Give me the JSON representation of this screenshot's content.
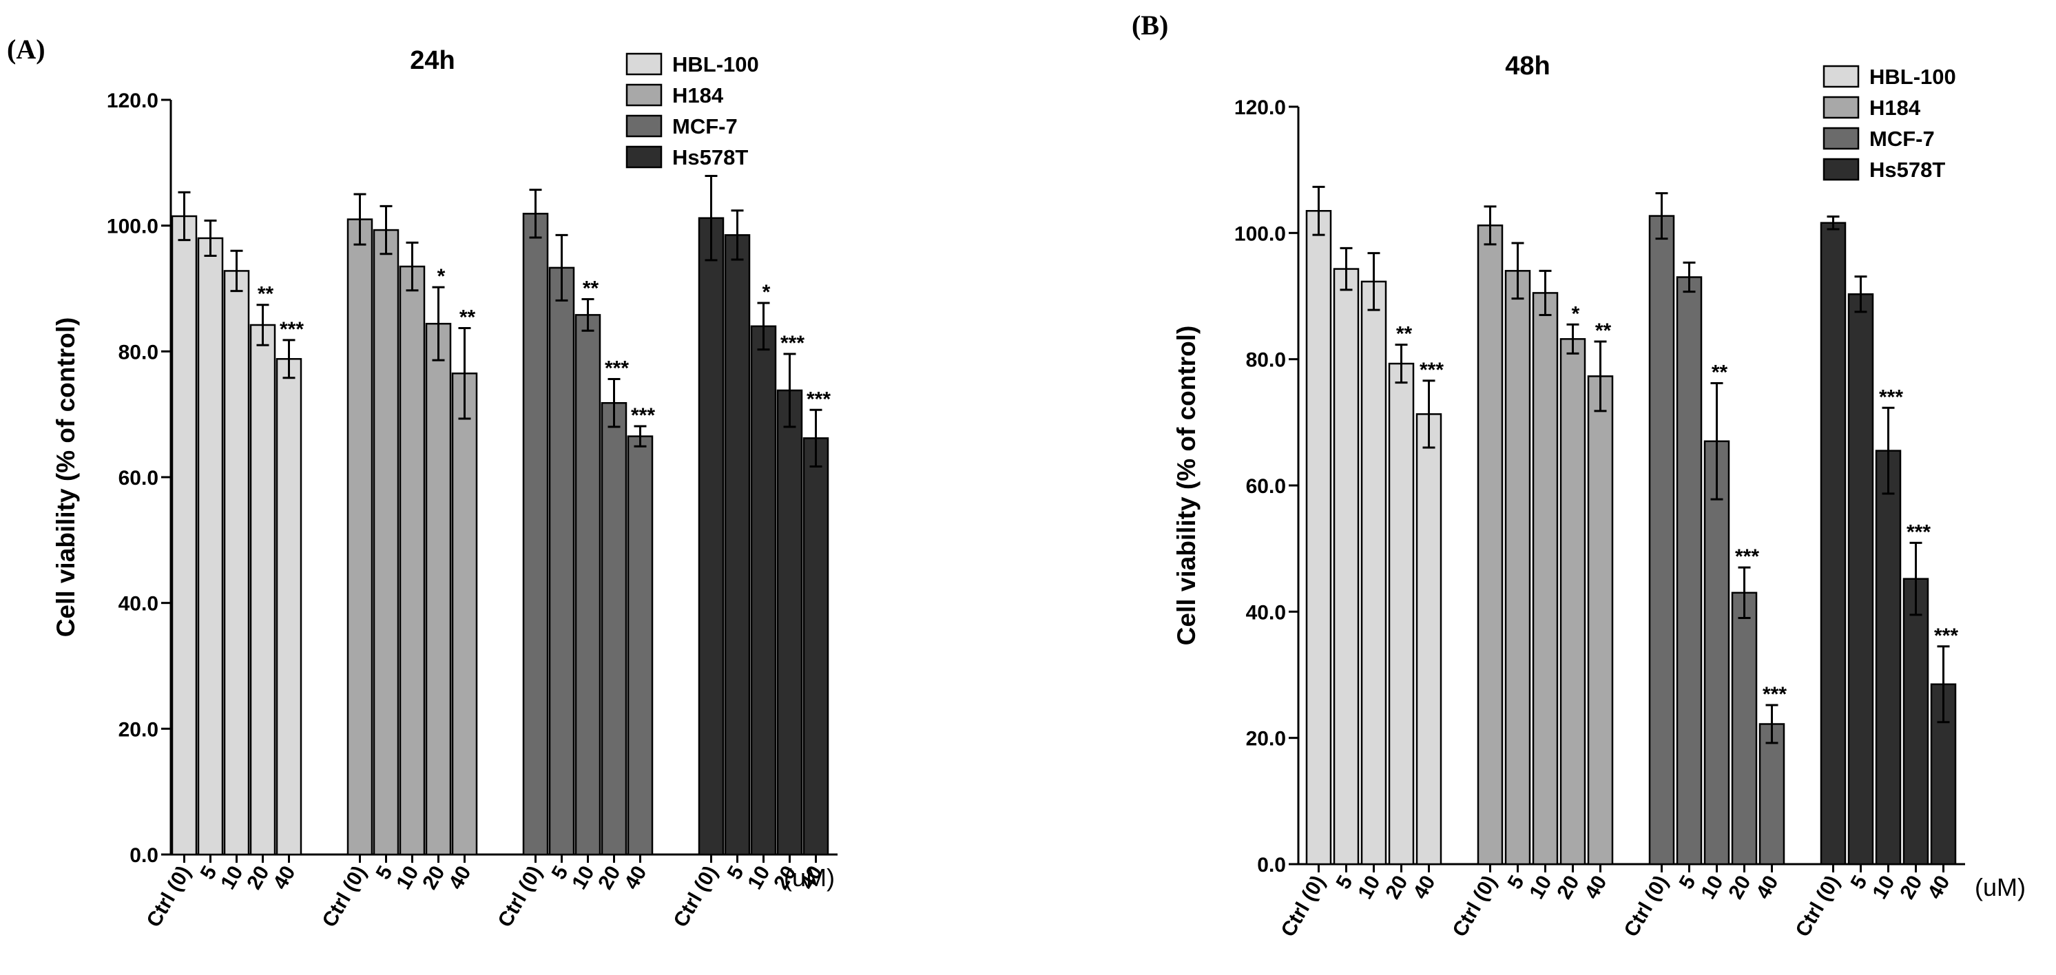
{
  "chart_data": [
    {
      "panel": "(A)",
      "type": "bar",
      "title": "24h",
      "ylabel": "Cell viability (% of control)",
      "xlabel": "",
      "unit": "(uM)",
      "ylim": [
        0,
        120
      ],
      "yticks": [
        "0.0",
        "20.0",
        "40.0",
        "60.0",
        "80.0",
        "100.0",
        "120.0"
      ],
      "categories": [
        "Ctrl (0)",
        "5",
        "10",
        "20",
        "40"
      ],
      "legend_position": "top-right",
      "series": [
        {
          "name": "HBL-100",
          "color": "#d9d9d9",
          "values": [
            101.5,
            98.0,
            92.8,
            84.2,
            78.8
          ],
          "errors": [
            3.8,
            2.8,
            3.2,
            3.2,
            3.0
          ],
          "sig": [
            "",
            "",
            "",
            "**",
            "***"
          ]
        },
        {
          "name": "H184",
          "color": "#a8a8a8",
          "values": [
            101.0,
            99.3,
            93.5,
            84.4,
            76.5
          ],
          "errors": [
            4.0,
            3.8,
            3.8,
            5.8,
            7.2
          ],
          "sig": [
            "",
            "",
            "",
            "*",
            "**"
          ]
        },
        {
          "name": "MCF-7",
          "color": "#6b6b6b",
          "values": [
            101.9,
            93.3,
            85.8,
            71.8,
            66.5
          ],
          "errors": [
            3.8,
            5.2,
            2.5,
            3.8,
            1.6
          ],
          "sig": [
            "",
            "",
            "**",
            "***",
            "***"
          ]
        },
        {
          "name": "Hs578T",
          "color": "#2e2e2e",
          "values": [
            101.2,
            98.5,
            84.0,
            73.8,
            66.2
          ],
          "errors": [
            6.7,
            3.9,
            3.7,
            5.8,
            4.5
          ],
          "sig": [
            "",
            "",
            "*",
            "***",
            "***"
          ]
        }
      ]
    },
    {
      "panel": "(B)",
      "type": "bar",
      "title": "48h",
      "ylabel": "Cell viability (% of control)",
      "xlabel": "",
      "unit": "(uM)",
      "ylim": [
        0,
        120
      ],
      "yticks": [
        "0.0",
        "20.0",
        "40.0",
        "60.0",
        "80.0",
        "100.0",
        "120.0"
      ],
      "categories": [
        "Ctrl (0)",
        "5",
        "10",
        "20",
        "40"
      ],
      "legend_position": "top-right",
      "series": [
        {
          "name": "HBL-100",
          "color": "#d9d9d9",
          "values": [
            103.5,
            94.3,
            92.3,
            79.3,
            71.3
          ],
          "errors": [
            3.8,
            3.3,
            4.5,
            3.0,
            5.3
          ],
          "sig": [
            "",
            "",
            "",
            "**",
            "***"
          ]
        },
        {
          "name": "H184",
          "color": "#a8a8a8",
          "values": [
            101.2,
            94.0,
            90.5,
            83.2,
            77.3
          ],
          "errors": [
            3.0,
            4.4,
            3.5,
            2.3,
            5.5
          ],
          "sig": [
            "",
            "",
            "",
            "*",
            "**"
          ]
        },
        {
          "name": "MCF-7",
          "color": "#6b6b6b",
          "values": [
            102.7,
            93.0,
            67.0,
            43.0,
            22.2
          ],
          "errors": [
            3.6,
            2.3,
            9.2,
            4.0,
            3.0
          ],
          "sig": [
            "",
            "",
            "**",
            "***",
            "***"
          ]
        },
        {
          "name": "Hs578T",
          "color": "#2e2e2e",
          "values": [
            101.6,
            90.3,
            65.5,
            45.2,
            28.5
          ],
          "errors": [
            1.0,
            2.8,
            6.8,
            5.7,
            6.0
          ],
          "sig": [
            "",
            "",
            "***",
            "***",
            "***"
          ]
        }
      ]
    }
  ]
}
